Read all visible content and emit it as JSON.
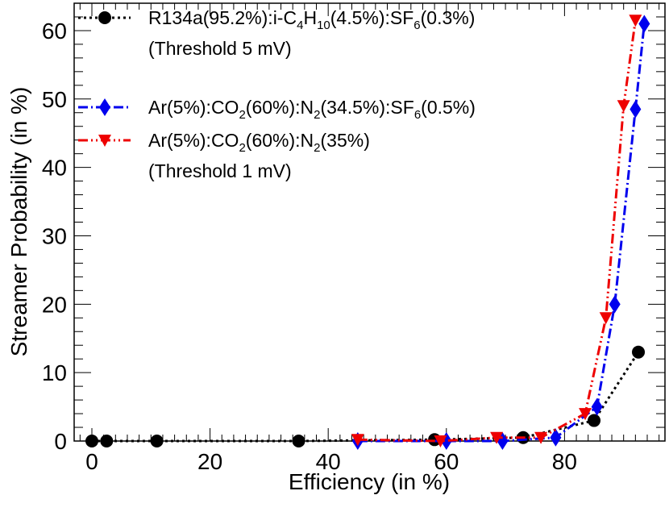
{
  "chart_data": {
    "type": "line",
    "title": "",
    "xlabel": "Efficiency (in %)",
    "ylabel": "Streamer Probability (in %)",
    "xlim": [
      -3,
      97
    ],
    "ylim": [
      0,
      64
    ],
    "xticks": [
      0,
      20,
      40,
      60,
      80
    ],
    "yticks": [
      0,
      10,
      20,
      30,
      40,
      50,
      60
    ],
    "x_tick_labels": [
      "0",
      "20",
      "40",
      "60",
      "80"
    ],
    "y_tick_labels": [
      "0",
      "10",
      "20",
      "30",
      "40",
      "50",
      "60"
    ],
    "legend_position": "top-left",
    "series": [
      {
        "name": "R134a(95.2%):i-C4H10(4.5%):SF6(0.3%)",
        "legend_parts": [
          [
            "R134a(95.2%):i-C",
            ""
          ],
          [
            "4",
            "sub"
          ],
          [
            "H",
            ""
          ],
          [
            "10",
            "sub"
          ],
          [
            "(4.5%):SF",
            ""
          ],
          [
            "6",
            "sub"
          ],
          [
            "(0.3%)",
            ""
          ]
        ],
        "color": "#000000",
        "marker": "circle",
        "line_style": "dotted",
        "x": [
          0,
          2.5,
          11,
          35,
          58,
          73,
          85,
          92.5
        ],
        "y": [
          0,
          0,
          0,
          0,
          0.2,
          0.5,
          3,
          13
        ]
      },
      {
        "name": "Ar(5%):CO2(60%):N2(34.5%):SF6(0.5%)",
        "legend_parts": [
          [
            "Ar(5%):CO",
            ""
          ],
          [
            "2",
            "sub"
          ],
          [
            "(60%):N",
            ""
          ],
          [
            "2",
            "sub"
          ],
          [
            "(34.5%):SF",
            ""
          ],
          [
            "6",
            "sub"
          ],
          [
            "(0.5%)",
            ""
          ]
        ],
        "color": "#0000ee",
        "marker": "diamond",
        "line_style": "dash-dot",
        "x": [
          45,
          60,
          69.5,
          78.5,
          85.5,
          88.5,
          92,
          93.5
        ],
        "y": [
          0,
          0,
          0,
          0.5,
          5,
          20,
          48.5,
          61
        ]
      },
      {
        "name": "Ar(5%):CO2(60%):N2(35%)",
        "legend_parts": [
          [
            "Ar(5%):CO",
            ""
          ],
          [
            "2",
            "sub"
          ],
          [
            "(60%):N",
            ""
          ],
          [
            "2",
            "sub"
          ],
          [
            "(35%)",
            ""
          ]
        ],
        "color": "#ee0000",
        "marker": "triangle-down",
        "line_style": "dash-dot-dot",
        "x": [
          45,
          59,
          68.5,
          76,
          83.5,
          87,
          90,
          92
        ],
        "y": [
          0.2,
          0,
          0.5,
          0.5,
          4,
          18,
          49,
          61.5
        ]
      }
    ],
    "annotations": [
      "(Threshold 5 mV)",
      "(Threshold 1 mV)"
    ]
  }
}
